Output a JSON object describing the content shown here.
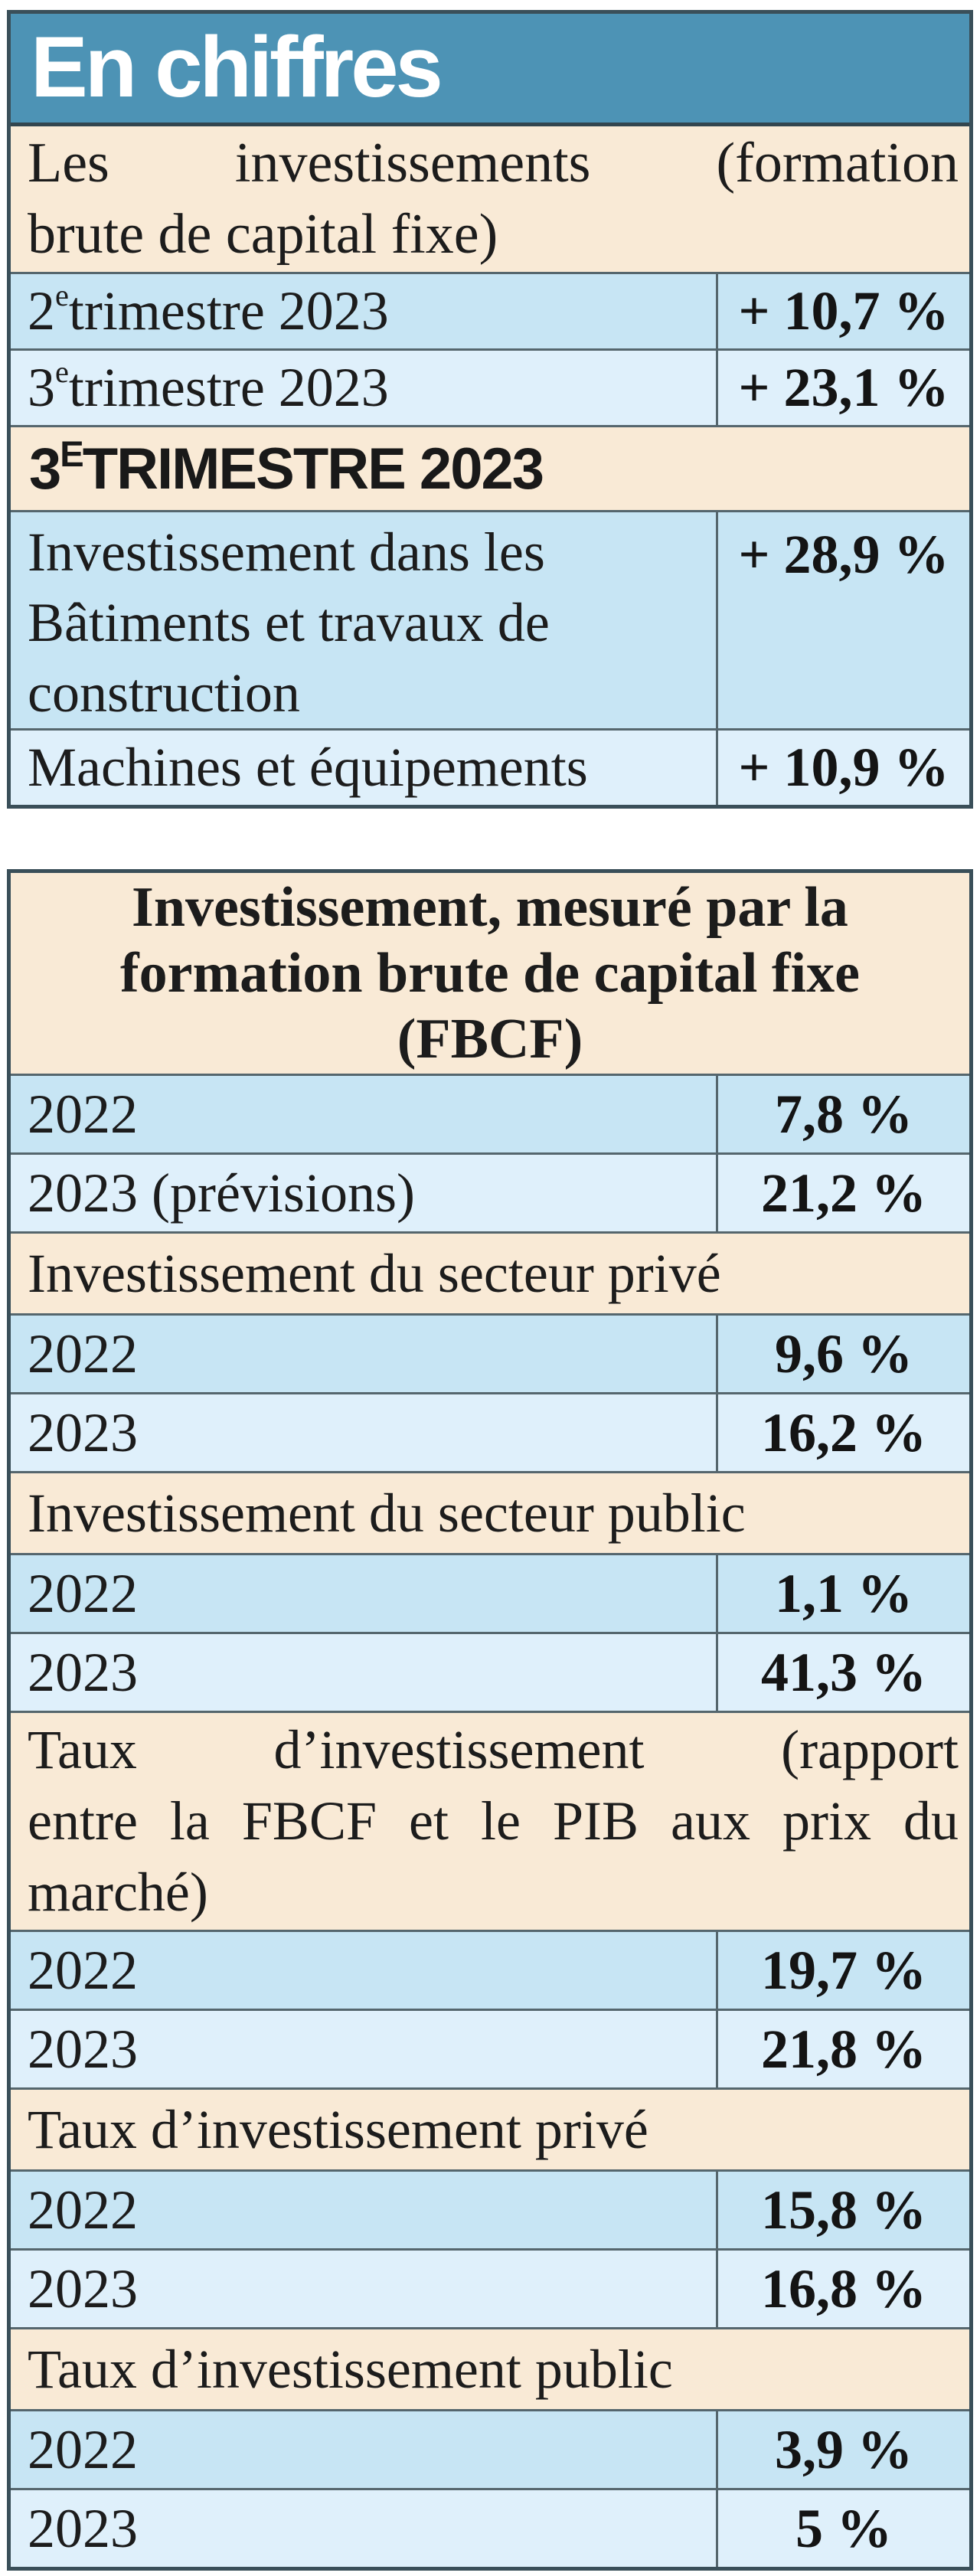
{
  "page": {
    "kind": "newspaper statistics infographic",
    "language": "fr"
  },
  "colors": {
    "header_teal": "#4d93b5",
    "band_cream": "#f9ead6",
    "row_blue_dark": "#c7e5f4",
    "row_blue_light": "#dff0fb",
    "frame_border": "#3a4f59",
    "row_separator": "#55666d",
    "title_text": "#ffffff",
    "body_text": "#1c1c1c"
  },
  "display": {
    "intro_lines": [
      "Les investissements (formation",
      "brute de capital fixe)"
    ],
    "header2_lines": [
      "Investissement, mesuré par la",
      "formation brute de capital fixe",
      "(FBCF)"
    ],
    "taux_lines": [
      "Taux d’investissement (rapport",
      "entre la FBCF et le PIB aux prix du",
      "marché)"
    ],
    "sup_q2": {
      "base": "2",
      "sup": "e",
      "rest": " trimestre 2023"
    },
    "sup_q3": {
      "base": "3",
      "sup": "e",
      "rest": " trimestre 2023"
    },
    "sup_sec": {
      "base": "3",
      "sup": "E",
      "rest": " TRIMESTRE 2023"
    }
  },
  "chart_data": [
    {
      "type": "table",
      "title": "En chiffres",
      "intro": "Les investissements (formation brute de capital fixe)",
      "rows": [
        [
          "2e trimestre 2023",
          "+ 10,7 %"
        ],
        [
          "3e trimestre 2023",
          "+ 23,1 %"
        ]
      ],
      "section_heading": "3E TRIMESTRE 2023",
      "section_rows": [
        [
          "Investissement dans les Bâtiments et travaux de construction",
          "+ 28,9 %"
        ],
        [
          "Machines et équipements",
          "+ 10,9 %"
        ]
      ]
    },
    {
      "type": "table",
      "title": "Investissement, mesuré par la formation brute de capital fixe (FBCF)",
      "sections": [
        {
          "heading": "",
          "rows": [
            [
              "2022",
              "7,8 %"
            ],
            [
              "2023 (prévisions)",
              "21,2 %"
            ]
          ]
        },
        {
          "heading": "Investissement du secteur privé",
          "rows": [
            [
              "2022",
              "9,6 %"
            ],
            [
              "2023",
              "16,2 %"
            ]
          ]
        },
        {
          "heading": "Investissement du secteur public",
          "rows": [
            [
              "2022",
              "1,1 %"
            ],
            [
              "2023",
              "41,3 %"
            ]
          ]
        },
        {
          "heading": "Taux d’investissement (rapport entre la FBCF et le PIB aux prix du marché)",
          "rows": [
            [
              "2022",
              "19,7 %"
            ],
            [
              "2023",
              "21,8 %"
            ]
          ]
        },
        {
          "heading": "Taux d’investissement privé",
          "rows": [
            [
              "2022",
              "15,8 %"
            ],
            [
              "2023",
              "16,8 %"
            ]
          ]
        },
        {
          "heading": "Taux d’investissement public",
          "rows": [
            [
              "2022",
              "3,9 %"
            ],
            [
              "2023",
              "5 %"
            ]
          ]
        }
      ]
    }
  ]
}
